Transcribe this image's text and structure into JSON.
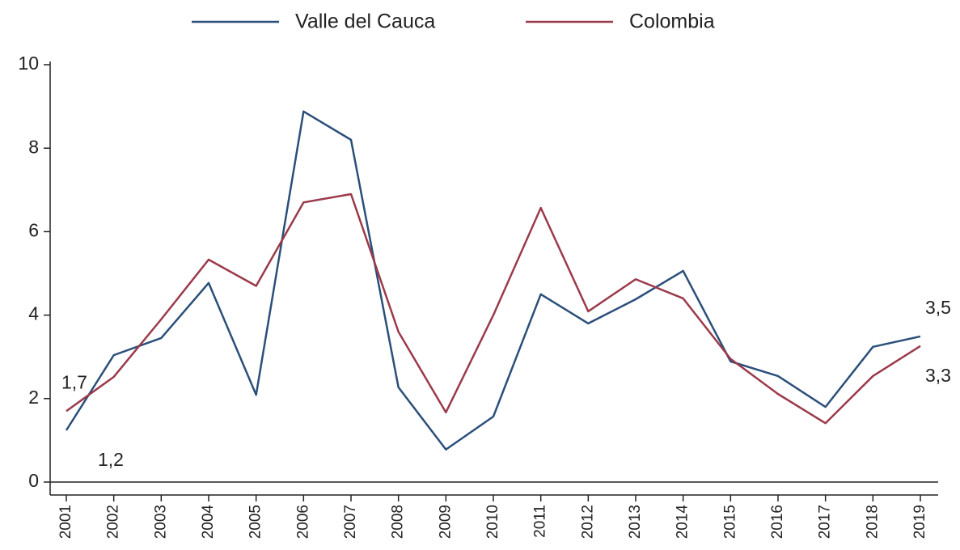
{
  "chart_data": {
    "type": "line",
    "categories": [
      "2001",
      "2002",
      "2003",
      "2004",
      "2005",
      "2006",
      "2007",
      "2008",
      "2009",
      "2010",
      "2011",
      "2012",
      "2013",
      "2014",
      "2015",
      "2016",
      "2017",
      "2018",
      "2019"
    ],
    "series": [
      {
        "name": "Valle del Cauca",
        "color": "#2b4f7a",
        "values": [
          1.24,
          3.04,
          3.45,
          4.77,
          2.09,
          8.88,
          8.2,
          2.27,
          0.78,
          1.57,
          4.5,
          3.8,
          4.38,
          5.06,
          2.89,
          2.54,
          1.8,
          3.24,
          3.49
        ],
        "value_labels": [
          "1,2",
          null,
          null,
          null,
          null,
          null,
          null,
          null,
          null,
          null,
          null,
          null,
          null,
          null,
          null,
          null,
          null,
          null,
          "3,5"
        ]
      },
      {
        "name": "Colombia",
        "color": "#9b3a4a",
        "values": [
          1.7,
          2.52,
          3.9,
          5.33,
          4.7,
          6.7,
          6.9,
          3.6,
          1.67,
          4.0,
          6.57,
          4.09,
          4.86,
          4.4,
          2.95,
          2.11,
          1.41,
          2.54,
          3.26
        ],
        "value_labels": [
          "1,7",
          null,
          null,
          null,
          null,
          null,
          null,
          null,
          null,
          null,
          null,
          null,
          null,
          null,
          null,
          null,
          null,
          null,
          "3,3"
        ]
      }
    ],
    "ylim": [
      0,
      10
    ],
    "yticks": [
      0,
      2,
      4,
      6,
      8,
      10
    ],
    "legend": "top"
  }
}
